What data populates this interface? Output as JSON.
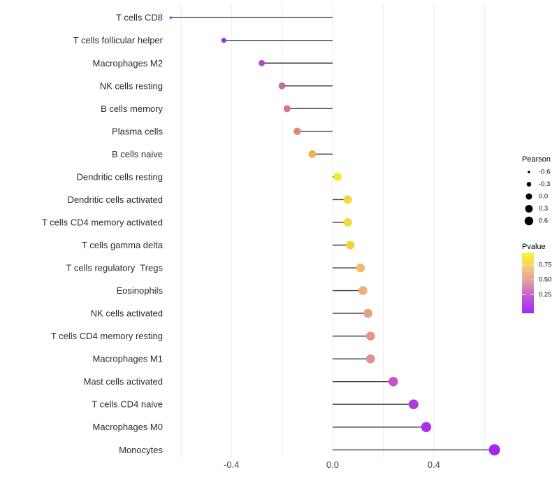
{
  "chart_data": {
    "type": "scatter",
    "variant": "horizontal-lollipop",
    "title": "",
    "xlabel": "",
    "ylabel": "",
    "x_axis": {
      "ticks": [
        -0.4,
        0.0,
        0.4
      ],
      "tick_labels": [
        "-0.4",
        "0.0",
        "0.4"
      ],
      "gridlines": [
        -0.6,
        -0.4,
        -0.2,
        0.0,
        0.2,
        0.4,
        0.6
      ],
      "range": [
        -0.7,
        0.68
      ],
      "grid": true
    },
    "points": [
      {
        "label": "T cells CD8",
        "pearson": -0.64,
        "color": "#8F28D4"
      },
      {
        "label": "T cells follicular helper",
        "pearson": -0.43,
        "color": "#9334DB"
      },
      {
        "label": "Macrophages M2",
        "pearson": -0.28,
        "color": "#AE49C9"
      },
      {
        "label": "NK cells resting",
        "pearson": -0.2,
        "color": "#C768A3"
      },
      {
        "label": "B cells memory",
        "pearson": -0.18,
        "color": "#CF7693"
      },
      {
        "label": "Plasma cells",
        "pearson": -0.14,
        "color": "#DC8A75"
      },
      {
        "label": "B cells naive",
        "pearson": -0.08,
        "color": "#EBB454"
      },
      {
        "label": "Dendritic cells resting",
        "pearson": 0.02,
        "color": "#F2EE26"
      },
      {
        "label": "Dendritic cells activated",
        "pearson": 0.06,
        "color": "#F5D740"
      },
      {
        "label": "T cells CD4 memory activated",
        "pearson": 0.06,
        "color": "#F5D740"
      },
      {
        "label": "T cells gamma delta",
        "pearson": 0.07,
        "color": "#F4D13F"
      },
      {
        "label": "T cells regulatory  Tregs",
        "pearson": 0.11,
        "color": "#F2BA6C"
      },
      {
        "label": "Eosinophils",
        "pearson": 0.12,
        "color": "#EFAD7B"
      },
      {
        "label": "NK cells activated",
        "pearson": 0.14,
        "color": "#E99E86"
      },
      {
        "label": "T cells CD4 memory resting",
        "pearson": 0.15,
        "color": "#E5938C"
      },
      {
        "label": "Macrophages M1",
        "pearson": 0.15,
        "color": "#E28F90"
      },
      {
        "label": "Mast cells activated",
        "pearson": 0.24,
        "color": "#C850C8"
      },
      {
        "label": "T cells CD4 naive",
        "pearson": 0.32,
        "color": "#B43BDB"
      },
      {
        "label": "Macrophages M0",
        "pearson": 0.37,
        "color": "#AA30E5"
      },
      {
        "label": "Monocytes",
        "pearson": 0.64,
        "color": "#A327F0"
      }
    ],
    "legends": {
      "size_legend": {
        "title": "Pearson",
        "entries": [
          {
            "label": "-0.6",
            "value": -0.6
          },
          {
            "label": "-0.3",
            "value": -0.3
          },
          {
            "label": "0.0",
            "value": 0.0
          },
          {
            "label": "0.3",
            "value": 0.3
          },
          {
            "label": "0.6",
            "value": 0.6
          }
        ]
      },
      "color_legend": {
        "title": "Pvalue",
        "tick_labels": [
          "0.75",
          "0.50",
          "0.25"
        ],
        "gradient_stops": [
          "#FBF62D",
          "#F3CA7B",
          "#DE94A7",
          "#BE55DE",
          "#A428F0"
        ]
      }
    },
    "colors": {
      "stem": "#3F3F3F",
      "gridline": "#EBEBEB",
      "tick_text": "#454545",
      "label_text": "#2B2B2B",
      "legend_dot": "#000000",
      "background": "#FFFFFF"
    }
  }
}
